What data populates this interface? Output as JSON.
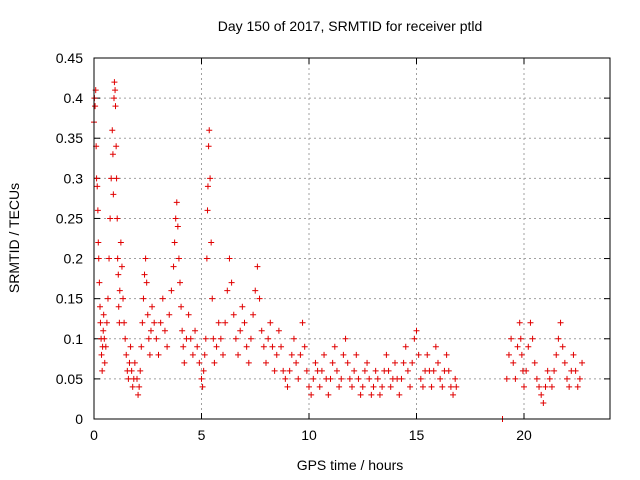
{
  "chart_data": {
    "type": "scatter",
    "title": "Day 150 of 2017, SRMTID for receiver ptld",
    "xlabel": "GPS time / hours",
    "ylabel": "SRMTID / TECUs",
    "xlim": [
      0,
      24
    ],
    "ylim": [
      0,
      0.45
    ],
    "x_ticks": [
      0,
      5,
      10,
      15,
      20
    ],
    "y_ticks": [
      0,
      0.05,
      0.1,
      0.15,
      0.2,
      0.25,
      0.3,
      0.35,
      0.4,
      0.45
    ],
    "x_tick_labels": [
      "0",
      "5",
      "10",
      "15",
      "20"
    ],
    "y_tick_labels": [
      "0",
      "0.05",
      "0.1",
      "0.15",
      "0.2",
      "0.25",
      "0.3",
      "0.35",
      "0.4",
      "0.45"
    ],
    "grid": true,
    "marker": "plus",
    "color": "#e00000",
    "series": [
      {
        "points": [
          [
            0.0,
            0.37
          ],
          [
            0.02,
            0.4
          ],
          [
            0.05,
            0.39
          ],
          [
            0.08,
            0.41
          ],
          [
            0.1,
            0.34
          ],
          [
            0.12,
            0.3
          ],
          [
            0.15,
            0.29
          ],
          [
            0.18,
            0.26
          ],
          [
            0.2,
            0.22
          ],
          [
            0.22,
            0.2
          ],
          [
            0.25,
            0.17
          ],
          [
            0.28,
            0.14
          ],
          [
            0.3,
            0.12
          ],
          [
            0.33,
            0.1
          ],
          [
            0.35,
            0.08
          ],
          [
            0.38,
            0.06
          ],
          [
            0.4,
            0.09
          ],
          [
            0.43,
            0.11
          ],
          [
            0.45,
            0.13
          ],
          [
            0.48,
            0.1
          ],
          [
            0.5,
            0.07
          ],
          [
            0.55,
            0.09
          ],
          [
            0.6,
            0.12
          ],
          [
            0.65,
            0.15
          ],
          [
            0.7,
            0.2
          ],
          [
            0.75,
            0.25
          ],
          [
            0.8,
            0.3
          ],
          [
            0.85,
            0.36
          ],
          [
            0.88,
            0.33
          ],
          [
            0.9,
            0.28
          ],
          [
            0.93,
            0.4
          ],
          [
            0.95,
            0.42
          ],
          [
            0.98,
            0.41
          ],
          [
            1.0,
            0.39
          ],
          [
            1.03,
            0.34
          ],
          [
            1.05,
            0.3
          ],
          [
            1.08,
            0.25
          ],
          [
            1.1,
            0.2
          ],
          [
            1.13,
            0.18
          ],
          [
            1.15,
            0.14
          ],
          [
            1.18,
            0.12
          ],
          [
            1.2,
            0.16
          ],
          [
            1.25,
            0.22
          ],
          [
            1.3,
            0.19
          ],
          [
            1.35,
            0.15
          ],
          [
            1.4,
            0.12
          ],
          [
            1.45,
            0.1
          ],
          [
            1.5,
            0.08
          ],
          [
            1.55,
            0.06
          ],
          [
            1.6,
            0.05
          ],
          [
            1.65,
            0.07
          ],
          [
            1.7,
            0.09
          ],
          [
            1.75,
            0.06
          ],
          [
            1.8,
            0.04
          ],
          [
            1.85,
            0.05
          ],
          [
            1.9,
            0.07
          ],
          [
            2.0,
            0.05
          ],
          [
            2.05,
            0.03
          ],
          [
            2.1,
            0.04
          ],
          [
            2.15,
            0.06
          ],
          [
            2.2,
            0.09
          ],
          [
            2.25,
            0.12
          ],
          [
            2.3,
            0.15
          ],
          [
            2.35,
            0.18
          ],
          [
            2.4,
            0.2
          ],
          [
            2.45,
            0.17
          ],
          [
            2.5,
            0.13
          ],
          [
            2.55,
            0.1
          ],
          [
            2.6,
            0.08
          ],
          [
            2.65,
            0.11
          ],
          [
            2.7,
            0.14
          ],
          [
            2.8,
            0.12
          ],
          [
            2.9,
            0.1
          ],
          [
            3.0,
            0.08
          ],
          [
            3.1,
            0.12
          ],
          [
            3.2,
            0.15
          ],
          [
            3.3,
            0.11
          ],
          [
            3.4,
            0.09
          ],
          [
            3.5,
            0.13
          ],
          [
            3.6,
            0.16
          ],
          [
            3.7,
            0.19
          ],
          [
            3.75,
            0.22
          ],
          [
            3.8,
            0.25
          ],
          [
            3.85,
            0.27
          ],
          [
            3.9,
            0.24
          ],
          [
            3.95,
            0.2
          ],
          [
            4.0,
            0.17
          ],
          [
            4.05,
            0.14
          ],
          [
            4.1,
            0.11
          ],
          [
            4.15,
            0.09
          ],
          [
            4.2,
            0.07
          ],
          [
            4.3,
            0.1
          ],
          [
            4.4,
            0.13
          ],
          [
            4.5,
            0.1
          ],
          [
            4.6,
            0.08
          ],
          [
            4.7,
            0.11
          ],
          [
            4.8,
            0.09
          ],
          [
            4.9,
            0.07
          ],
          [
            5.0,
            0.05
          ],
          [
            5.05,
            0.04
          ],
          [
            5.1,
            0.06
          ],
          [
            5.15,
            0.08
          ],
          [
            5.2,
            0.1
          ],
          [
            5.25,
            0.2
          ],
          [
            5.28,
            0.26
          ],
          [
            5.3,
            0.29
          ],
          [
            5.33,
            0.34
          ],
          [
            5.36,
            0.36
          ],
          [
            5.4,
            0.3
          ],
          [
            5.45,
            0.22
          ],
          [
            5.5,
            0.15
          ],
          [
            5.55,
            0.1
          ],
          [
            5.6,
            0.07
          ],
          [
            5.7,
            0.09
          ],
          [
            5.8,
            0.12
          ],
          [
            5.9,
            0.1
          ],
          [
            6.0,
            0.08
          ],
          [
            6.1,
            0.12
          ],
          [
            6.2,
            0.16
          ],
          [
            6.3,
            0.2
          ],
          [
            6.4,
            0.17
          ],
          [
            6.5,
            0.13
          ],
          [
            6.6,
            0.1
          ],
          [
            6.7,
            0.08
          ],
          [
            6.8,
            0.11
          ],
          [
            6.9,
            0.14
          ],
          [
            7.0,
            0.12
          ],
          [
            7.1,
            0.09
          ],
          [
            7.2,
            0.07
          ],
          [
            7.3,
            0.1
          ],
          [
            7.4,
            0.13
          ],
          [
            7.5,
            0.16
          ],
          [
            7.6,
            0.19
          ],
          [
            7.7,
            0.15
          ],
          [
            7.8,
            0.11
          ],
          [
            7.9,
            0.09
          ],
          [
            8.0,
            0.07
          ],
          [
            8.1,
            0.1
          ],
          [
            8.2,
            0.12
          ],
          [
            8.3,
            0.09
          ],
          [
            8.4,
            0.06
          ],
          [
            8.5,
            0.08
          ],
          [
            8.6,
            0.11
          ],
          [
            8.7,
            0.09
          ],
          [
            8.8,
            0.06
          ],
          [
            8.9,
            0.05
          ],
          [
            9.0,
            0.04
          ],
          [
            9.1,
            0.06
          ],
          [
            9.2,
            0.08
          ],
          [
            9.3,
            0.1
          ],
          [
            9.4,
            0.07
          ],
          [
            9.5,
            0.05
          ],
          [
            9.6,
            0.08
          ],
          [
            9.7,
            0.12
          ],
          [
            9.8,
            0.09
          ],
          [
            9.9,
            0.06
          ],
          [
            10.0,
            0.04
          ],
          [
            10.1,
            0.03
          ],
          [
            10.2,
            0.05
          ],
          [
            10.3,
            0.07
          ],
          [
            10.4,
            0.06
          ],
          [
            10.5,
            0.04
          ],
          [
            10.6,
            0.06
          ],
          [
            10.7,
            0.08
          ],
          [
            10.8,
            0.05
          ],
          [
            10.9,
            0.03
          ],
          [
            11.0,
            0.05
          ],
          [
            11.1,
            0.07
          ],
          [
            11.2,
            0.09
          ],
          [
            11.3,
            0.06
          ],
          [
            11.4,
            0.04
          ],
          [
            11.5,
            0.05
          ],
          [
            11.6,
            0.08
          ],
          [
            11.7,
            0.1
          ],
          [
            11.8,
            0.07
          ],
          [
            11.9,
            0.05
          ],
          [
            12.0,
            0.04
          ],
          [
            12.1,
            0.06
          ],
          [
            12.2,
            0.08
          ],
          [
            12.3,
            0.05
          ],
          [
            12.4,
            0.03
          ],
          [
            12.5,
            0.04
          ],
          [
            12.6,
            0.06
          ],
          [
            12.7,
            0.07
          ],
          [
            12.8,
            0.05
          ],
          [
            12.9,
            0.03
          ],
          [
            13.0,
            0.04
          ],
          [
            13.1,
            0.06
          ],
          [
            13.2,
            0.05
          ],
          [
            13.3,
            0.03
          ],
          [
            13.4,
            0.04
          ],
          [
            13.5,
            0.06
          ],
          [
            13.6,
            0.08
          ],
          [
            13.7,
            0.06
          ],
          [
            13.8,
            0.04
          ],
          [
            13.9,
            0.05
          ],
          [
            14.0,
            0.07
          ],
          [
            14.1,
            0.05
          ],
          [
            14.2,
            0.03
          ],
          [
            14.3,
            0.05
          ],
          [
            14.4,
            0.07
          ],
          [
            14.5,
            0.09
          ],
          [
            14.6,
            0.06
          ],
          [
            14.7,
            0.04
          ],
          [
            14.8,
            0.07
          ],
          [
            14.9,
            0.1
          ],
          [
            15.0,
            0.11
          ],
          [
            15.1,
            0.08
          ],
          [
            15.2,
            0.05
          ],
          [
            15.3,
            0.04
          ],
          [
            15.4,
            0.06
          ],
          [
            15.5,
            0.08
          ],
          [
            15.6,
            0.06
          ],
          [
            15.7,
            0.04
          ],
          [
            15.8,
            0.06
          ],
          [
            15.9,
            0.09
          ],
          [
            16.0,
            0.07
          ],
          [
            16.1,
            0.05
          ],
          [
            16.2,
            0.04
          ],
          [
            16.3,
            0.06
          ],
          [
            16.4,
            0.08
          ],
          [
            16.5,
            0.06
          ],
          [
            16.6,
            0.04
          ],
          [
            16.7,
            0.03
          ],
          [
            16.8,
            0.05
          ],
          [
            16.85,
            0.04
          ],
          [
            19.0,
            0.0
          ],
          [
            19.2,
            0.05
          ],
          [
            19.3,
            0.08
          ],
          [
            19.4,
            0.1
          ],
          [
            19.5,
            0.07
          ],
          [
            19.6,
            0.05
          ],
          [
            19.7,
            0.09
          ],
          [
            19.8,
            0.12
          ],
          [
            19.85,
            0.1
          ],
          [
            19.9,
            0.08
          ],
          [
            19.95,
            0.06
          ],
          [
            20.0,
            0.04
          ],
          [
            20.1,
            0.06
          ],
          [
            20.2,
            0.09
          ],
          [
            20.3,
            0.12
          ],
          [
            20.4,
            0.1
          ],
          [
            20.5,
            0.07
          ],
          [
            20.6,
            0.05
          ],
          [
            20.7,
            0.04
          ],
          [
            20.8,
            0.03
          ],
          [
            20.9,
            0.02
          ],
          [
            21.0,
            0.04
          ],
          [
            21.1,
            0.06
          ],
          [
            21.2,
            0.05
          ],
          [
            21.3,
            0.04
          ],
          [
            21.4,
            0.06
          ],
          [
            21.5,
            0.08
          ],
          [
            21.6,
            0.1
          ],
          [
            21.7,
            0.12
          ],
          [
            21.8,
            0.09
          ],
          [
            21.9,
            0.07
          ],
          [
            22.0,
            0.05
          ],
          [
            22.1,
            0.04
          ],
          [
            22.2,
            0.06
          ],
          [
            22.3,
            0.08
          ],
          [
            22.4,
            0.06
          ],
          [
            22.5,
            0.04
          ],
          [
            22.6,
            0.05
          ],
          [
            22.7,
            0.07
          ]
        ]
      }
    ]
  }
}
